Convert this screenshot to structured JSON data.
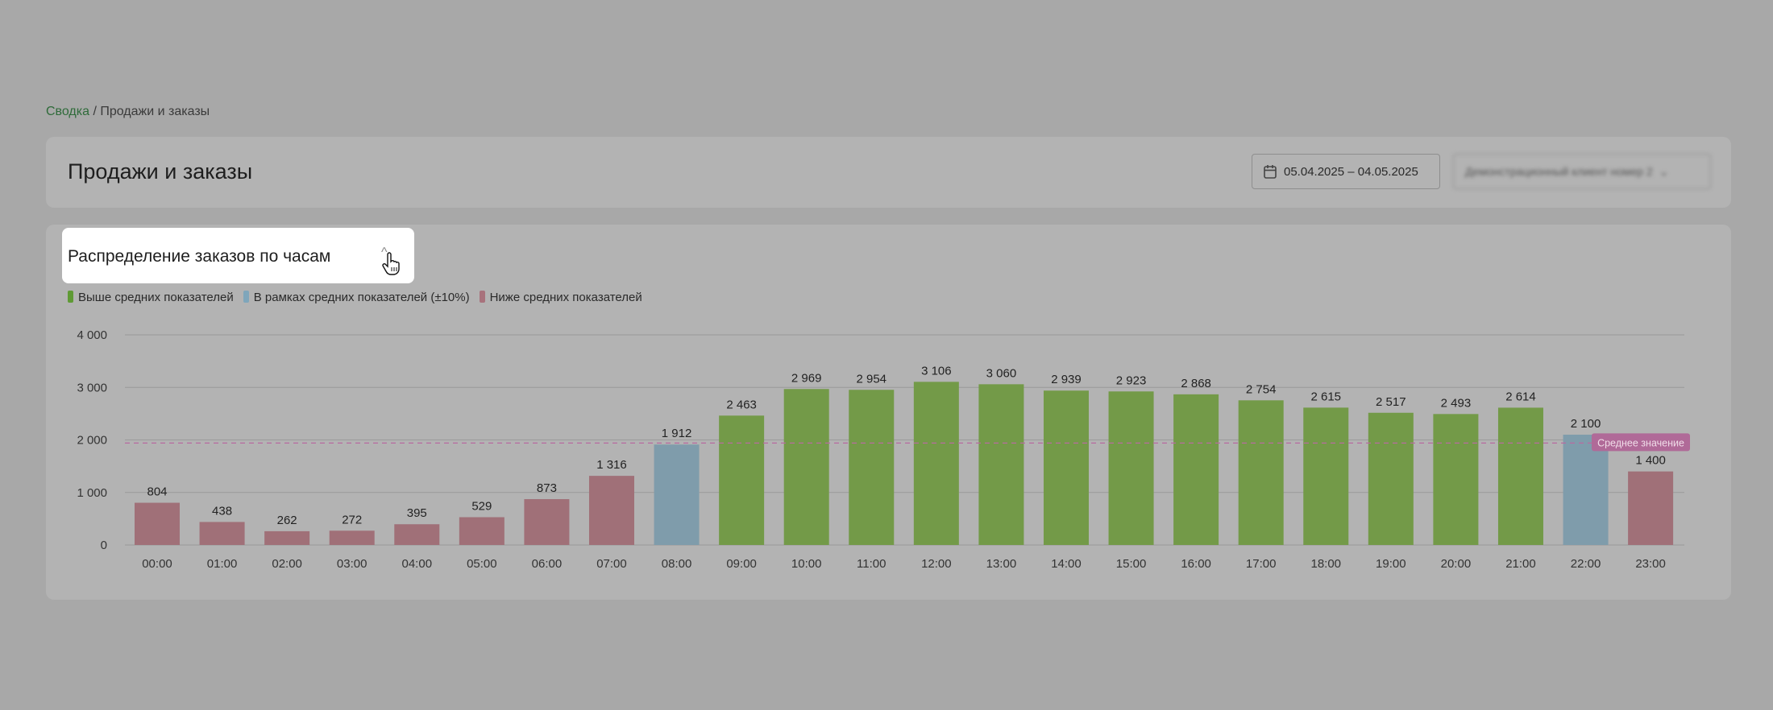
{
  "breadcrumb": {
    "root": "Сводка",
    "separator": " / ",
    "current": "Продажи и заказы"
  },
  "header": {
    "title": "Продажи и заказы",
    "date_range": "05.04.2025 – 04.05.2025",
    "client_select": "Демонстрационный клиент номер 2"
  },
  "card": {
    "title": "Распределение заказов по часам"
  },
  "legend": [
    {
      "label": "Выше средних показателей",
      "color": "#739a48"
    },
    {
      "label": "В рамках средних показателей (±10%)",
      "color": "#7f9cab"
    },
    {
      "label": "Ниже средних показателей",
      "color": "#a07078"
    }
  ],
  "chart_data": {
    "type": "bar",
    "title": "Распределение заказов по часам",
    "categories": [
      "00:00",
      "01:00",
      "02:00",
      "03:00",
      "04:00",
      "05:00",
      "06:00",
      "07:00",
      "08:00",
      "09:00",
      "10:00",
      "11:00",
      "12:00",
      "13:00",
      "14:00",
      "15:00",
      "16:00",
      "17:00",
      "18:00",
      "19:00",
      "20:00",
      "21:00",
      "22:00",
      "23:00"
    ],
    "values": [
      804,
      438,
      262,
      272,
      395,
      529,
      873,
      1316,
      1912,
      2463,
      2969,
      2954,
      3106,
      3060,
      2939,
      2923,
      2868,
      2754,
      2615,
      2517,
      2493,
      2614,
      2100,
      1400
    ],
    "labels": [
      "804",
      "438",
      "262",
      "272",
      "395",
      "529",
      "873",
      "1 316",
      "1 912",
      "2 463",
      "2 969",
      "2 954",
      "3 106",
      "3 060",
      "2 939",
      "2 923",
      "2 868",
      "2 754",
      "2 615",
      "2 517",
      "2 493",
      "2 614",
      "2 100",
      "1 400"
    ],
    "classes": [
      "below",
      "below",
      "below",
      "below",
      "below",
      "below",
      "below",
      "below",
      "within",
      "above",
      "above",
      "above",
      "above",
      "above",
      "above",
      "above",
      "above",
      "above",
      "above",
      "above",
      "above",
      "above",
      "within",
      "below"
    ],
    "ylim": [
      0,
      4000
    ],
    "yticks": [
      0,
      1000,
      2000,
      3000,
      4000
    ],
    "ytick_labels": [
      "0",
      "1 000",
      "2 000",
      "3 000",
      "4 000"
    ],
    "average": 1940.7,
    "average_label": "Среднее значение",
    "grid": true
  }
}
